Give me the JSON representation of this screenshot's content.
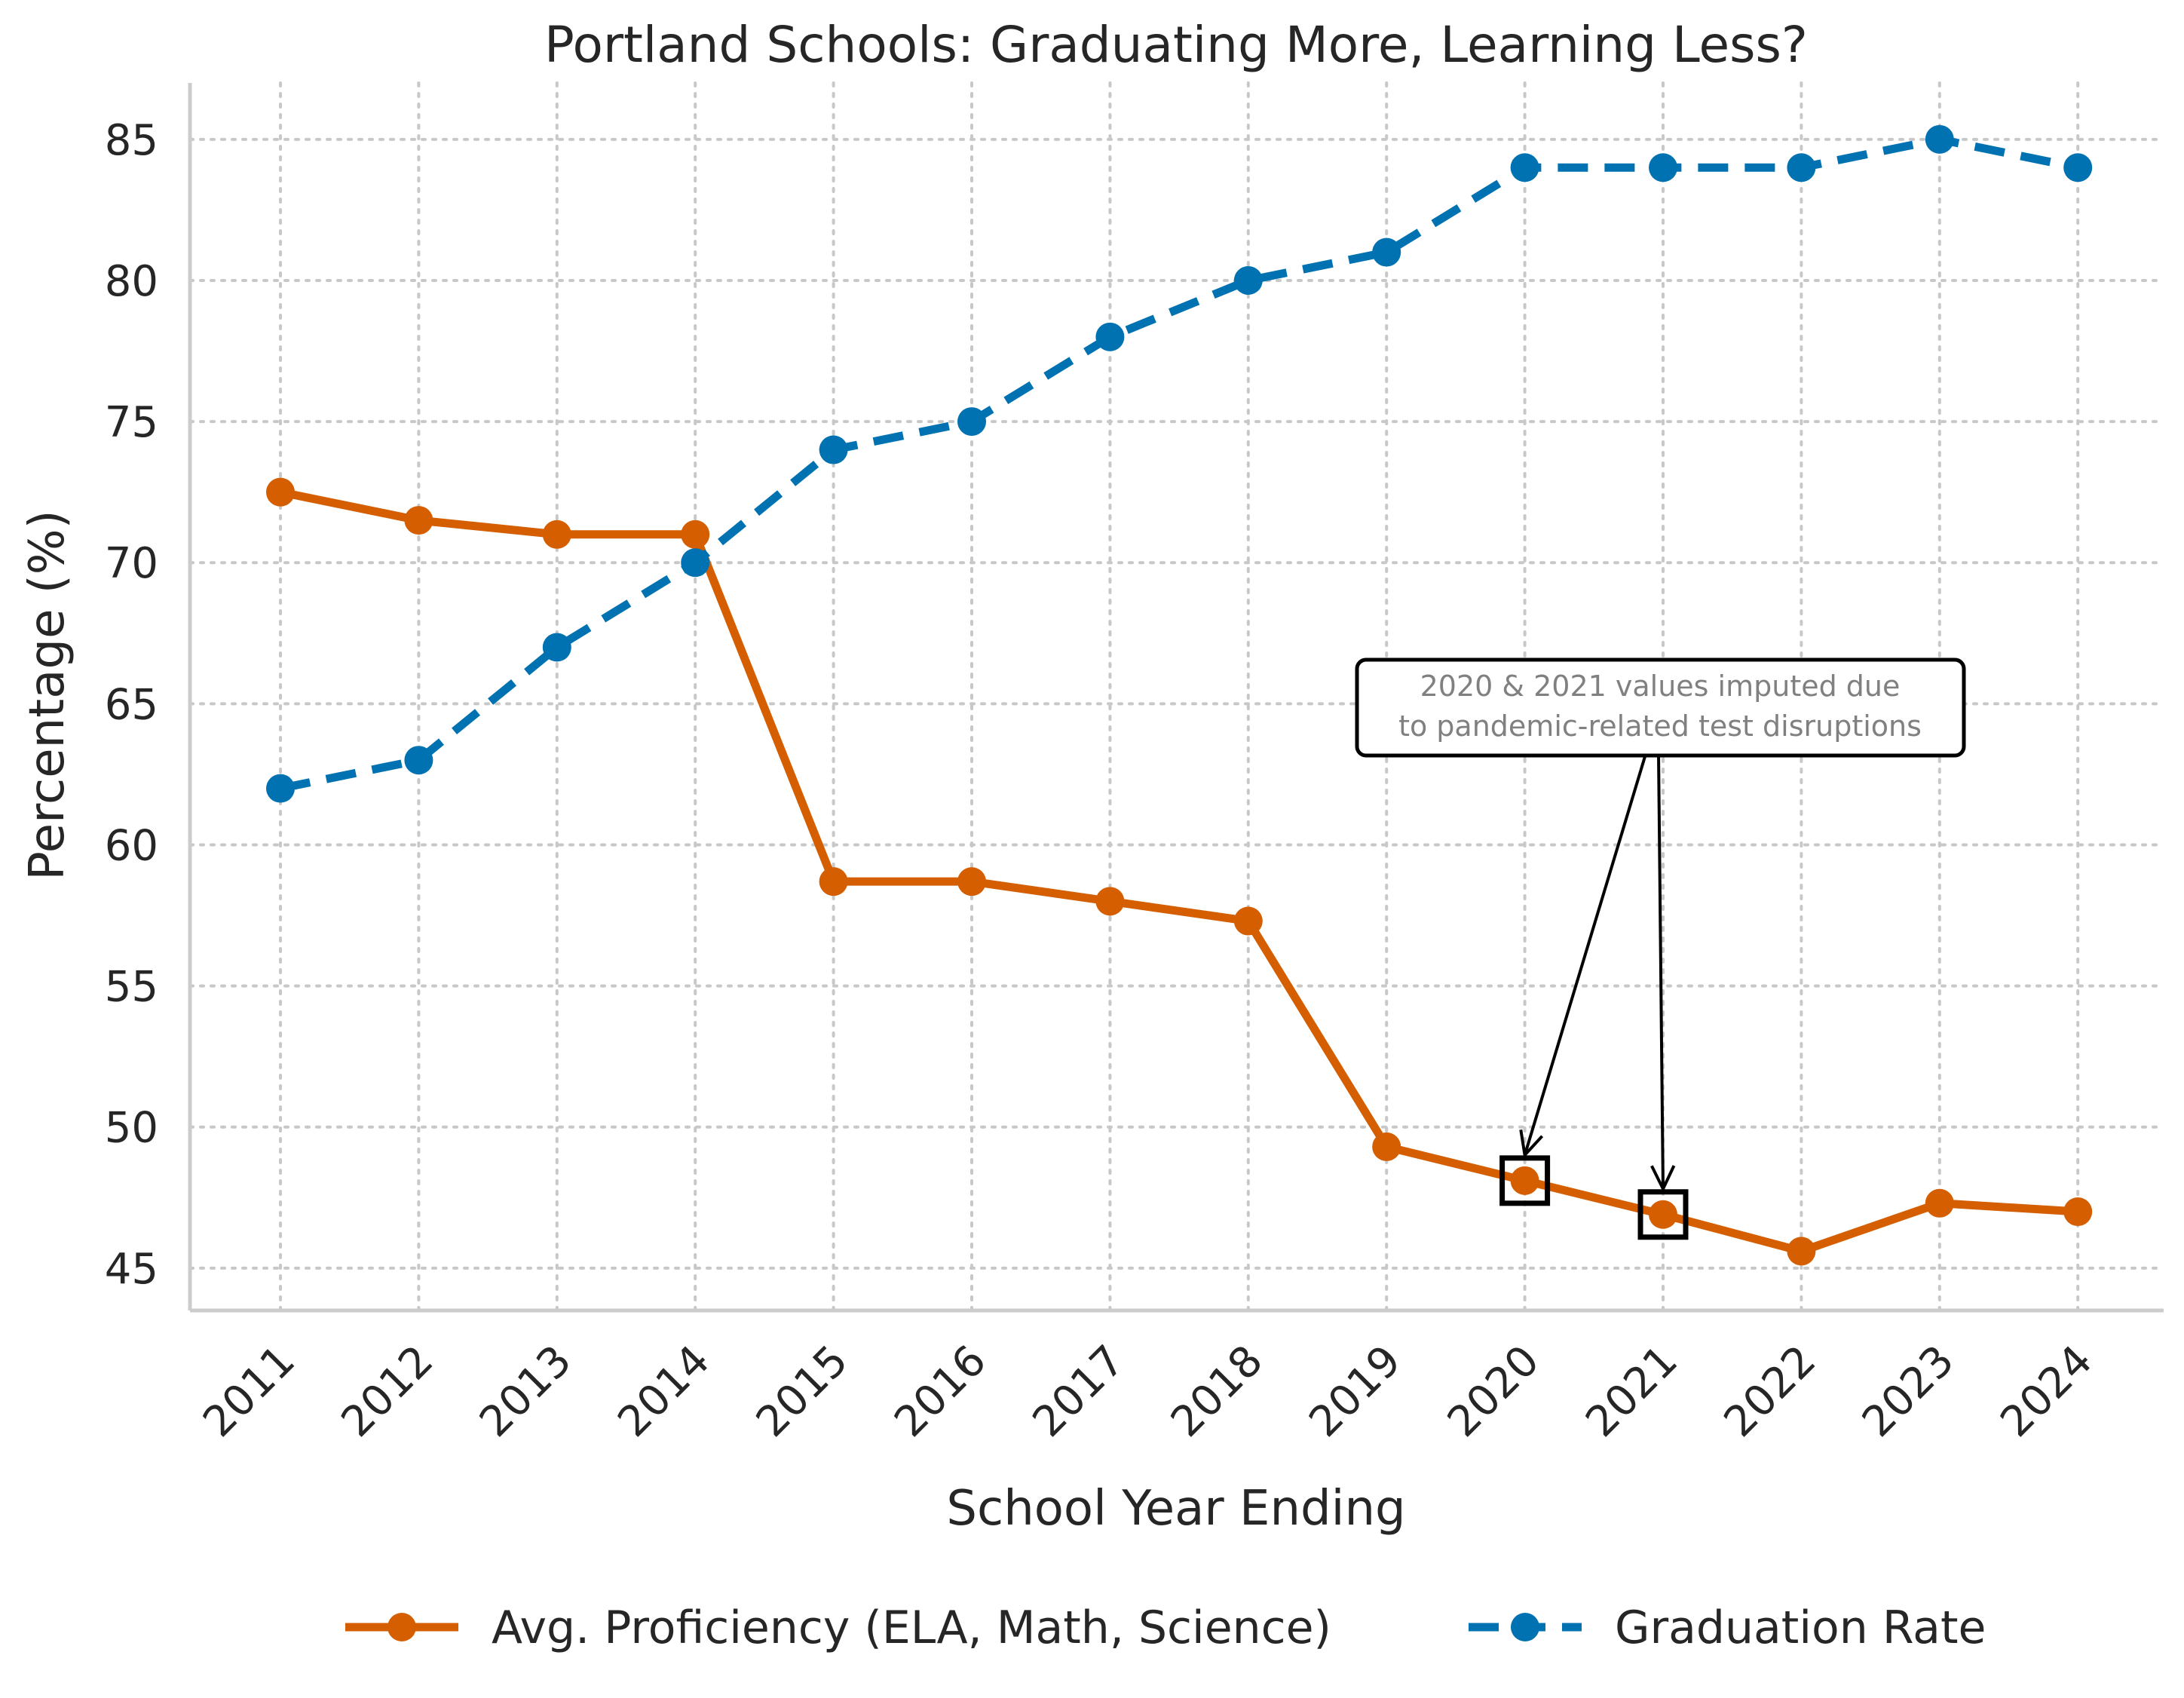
{
  "chart_data": {
    "type": "line",
    "title": "Portland Schools: Graduating More, Learning Less?",
    "xlabel": "School Year Ending",
    "ylabel": "Percentage (%)",
    "categories": [
      "2011",
      "2012",
      "2013",
      "2014",
      "2015",
      "2016",
      "2017",
      "2018",
      "2019",
      "2020",
      "2021",
      "2022",
      "2023",
      "2024"
    ],
    "series": [
      {
        "name": "Avg. Proficiency (ELA, Math, Science)",
        "color": "#D55E00",
        "style": "solid",
        "marker": "circle",
        "values": [
          72.5,
          71.5,
          71.0,
          71.0,
          58.7,
          58.7,
          58.0,
          57.3,
          49.3,
          48.1,
          46.9,
          45.6,
          47.3,
          47.0
        ]
      },
      {
        "name": "Graduation Rate",
        "color": "#0072B2",
        "style": "dashed",
        "marker": "circle",
        "values": [
          62,
          63,
          67,
          70,
          74,
          75,
          78,
          80,
          81,
          84,
          84,
          84,
          85,
          84
        ]
      }
    ],
    "yticks": [
      45,
      50,
      55,
      60,
      65,
      70,
      75,
      80,
      85
    ],
    "ylim": [
      43.5,
      87
    ],
    "grid": true,
    "legend_position": "bottom-center",
    "annotation": {
      "text_line1": "2020 & 2021 values imputed due",
      "text_line2": "to pandemic-related test disruptions",
      "targets": [
        "2020",
        "2021"
      ],
      "series": "Avg. Proficiency (ELA, Math, Science)"
    }
  }
}
